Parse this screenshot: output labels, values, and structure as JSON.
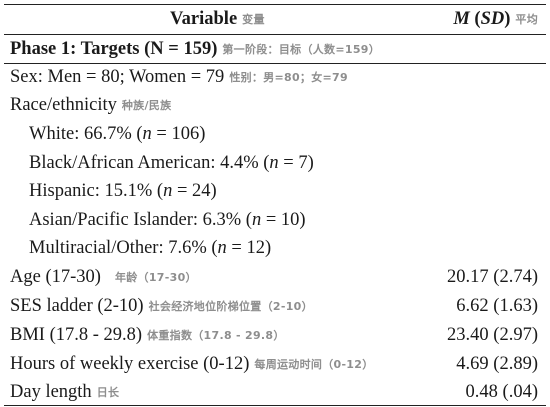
{
  "header": {
    "variable": "Variable",
    "variable_zh": "变量",
    "m_label": "M",
    "sd_label": "SD",
    "stat_zh": "平均"
  },
  "phase": {
    "label": "Phase 1: Targets (N = 159)",
    "zh": "第一阶段：目标（人数=159）"
  },
  "sex": {
    "label": "Sex: Men = 80; Women = 79",
    "zh": "性别：男=80；女=79"
  },
  "race": {
    "label": "Race/ethnicity",
    "zh": "种族/民族"
  },
  "race_items": [
    {
      "label": "White: 66.7% (",
      "n": "n",
      "rest": " = 106)"
    },
    {
      "label": "Black/African American: 4.4% (",
      "n": "n",
      "rest": " = 7)"
    },
    {
      "label": "Hispanic: 15.1% (",
      "n": "n",
      "rest": " = 24)"
    },
    {
      "label": "Asian/Pacific Islander: 6.3% (",
      "n": "n",
      "rest": " = 10)"
    },
    {
      "label": "Multiracial/Other: 7.6% (",
      "n": "n",
      "rest": " = 12)"
    }
  ],
  "measures": [
    {
      "label": "Age (17-30)",
      "zh": "年龄（17-30）",
      "value": "20.17 (2.74)"
    },
    {
      "label": "SES ladder (2-10)",
      "zh": "社会经济地位阶梯位置（2-10）",
      "value": "6.62 (1.63)"
    },
    {
      "label": "BMI (17.8 - 29.8)",
      "zh": "体重指数（17.8 - 29.8）",
      "value": "23.40 (2.97)"
    },
    {
      "label": "Hours of weekly exercise (0-12)",
      "zh": "每周运动时间（0-12）",
      "value": "4.69 (2.89)"
    },
    {
      "label": "Day length",
      "zh": "日长",
      "value": "0.48 (.04)"
    }
  ]
}
